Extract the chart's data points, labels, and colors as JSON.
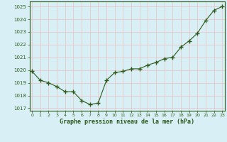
{
  "x": [
    0,
    1,
    2,
    3,
    4,
    5,
    6,
    7,
    8,
    9,
    10,
    11,
    12,
    13,
    14,
    15,
    16,
    17,
    18,
    19,
    20,
    21,
    22,
    23
  ],
  "y": [
    1019.9,
    1019.2,
    1019.0,
    1018.7,
    1018.3,
    1018.3,
    1017.6,
    1017.3,
    1017.4,
    1019.2,
    1019.8,
    1019.9,
    1020.1,
    1020.1,
    1020.4,
    1020.6,
    1020.9,
    1021.0,
    1021.8,
    1022.3,
    1022.9,
    1023.9,
    1024.7,
    1025.0
  ],
  "line_color": "#2d5a1b",
  "marker": "+",
  "marker_size": 4,
  "bg_color": "#d7eff5",
  "grid_color": "#e8c8c8",
  "xlabel": "Graphe pression niveau de la mer (hPa)",
  "xlabel_color": "#2d5a1b",
  "tick_color": "#2d5a1b",
  "ylim": [
    1016.8,
    1025.4
  ],
  "xlim": [
    -0.3,
    23.3
  ],
  "yticks": [
    1017,
    1018,
    1019,
    1020,
    1021,
    1022,
    1023,
    1024,
    1025
  ],
  "xticks": [
    0,
    1,
    2,
    3,
    4,
    5,
    6,
    7,
    8,
    9,
    10,
    11,
    12,
    13,
    14,
    15,
    16,
    17,
    18,
    19,
    20,
    21,
    22,
    23
  ],
  "figsize": [
    3.2,
    2.0
  ],
  "dpi": 100
}
